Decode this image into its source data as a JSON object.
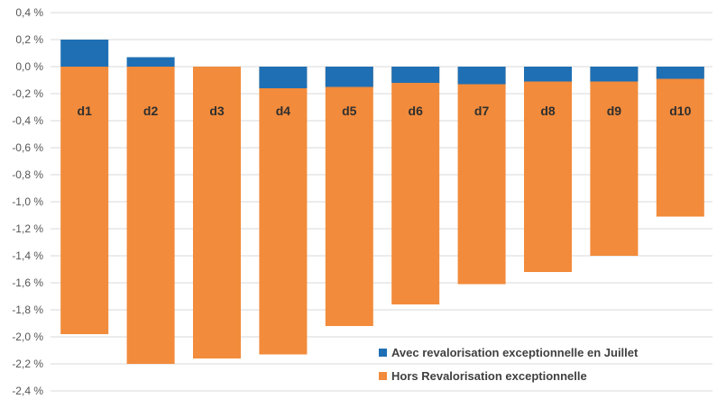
{
  "chart_data": {
    "type": "bar",
    "stacked": true,
    "categories": [
      "d1",
      "d2",
      "d3",
      "d4",
      "d5",
      "d6",
      "d7",
      "d8",
      "d9",
      "d10"
    ],
    "series": [
      {
        "name": "Avec revalorisation exceptionnelle en Juillet",
        "color": "#1f6fb4",
        "values": [
          0.2,
          0.07,
          0.0,
          -0.16,
          -0.15,
          -0.12,
          -0.13,
          -0.11,
          -0.11,
          -0.09
        ]
      },
      {
        "name": "Hors Revalorisation exceptionnelle",
        "color": "#f28b3b",
        "values": [
          -1.98,
          -2.2,
          -2.16,
          -2.13,
          -1.92,
          -1.76,
          -1.61,
          -1.52,
          -1.4,
          -1.11
        ]
      }
    ],
    "yticks": [
      "0,4 %",
      "0,2 %",
      "0,0 %",
      "-0,2 %",
      "-0,4 %",
      "-0,6 %",
      "-0,8 %",
      "-1,0 %",
      "-1,2 %",
      "-1,4 %",
      "-1,6 %",
      "-1,8 %",
      "-2,0 %",
      "-2,2 %",
      "-2,4 %"
    ],
    "ylim": [
      -2.4,
      0.4
    ],
    "grid": true,
    "legend_position": "bottom-right"
  }
}
